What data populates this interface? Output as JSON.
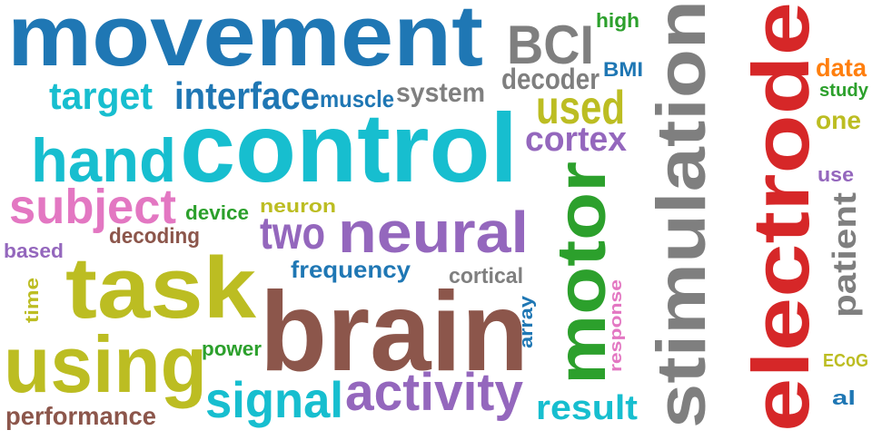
{
  "palette": {
    "blue": "#1f77b4",
    "teal": "#17becf",
    "olive": "#bcbd22",
    "purple": "#9467bd",
    "pink": "#e377c2",
    "brown": "#8c564b",
    "gray": "#7f7f7f",
    "green": "#2ca02c",
    "red": "#d62728",
    "orange": "#ff7f0e"
  },
  "words": [
    {
      "text": "movement",
      "color": "blue"
    },
    {
      "text": "control",
      "color": "teal"
    },
    {
      "text": "brain",
      "color": "brown"
    },
    {
      "text": "task",
      "color": "olive"
    },
    {
      "text": "electrode",
      "color": "red"
    },
    {
      "text": "stimulation",
      "color": "gray"
    },
    {
      "text": "using",
      "color": "olive"
    },
    {
      "text": "hand",
      "color": "teal"
    },
    {
      "text": "motor",
      "color": "green"
    },
    {
      "text": "neural",
      "color": "purple"
    },
    {
      "text": "activity",
      "color": "purple"
    },
    {
      "text": "signal",
      "color": "teal"
    },
    {
      "text": "subject",
      "color": "pink"
    },
    {
      "text": "interface",
      "color": "blue"
    },
    {
      "text": "BCI",
      "color": "gray"
    },
    {
      "text": "target",
      "color": "teal"
    },
    {
      "text": "two",
      "color": "purple"
    },
    {
      "text": "used",
      "color": "olive"
    },
    {
      "text": "cortex",
      "color": "purple"
    },
    {
      "text": "result",
      "color": "teal"
    },
    {
      "text": "patient",
      "color": "gray"
    },
    {
      "text": "decoder",
      "color": "gray"
    },
    {
      "text": "system",
      "color": "gray"
    },
    {
      "text": "muscle",
      "color": "blue"
    },
    {
      "text": "performance",
      "color": "brown"
    },
    {
      "text": "frequency",
      "color": "blue"
    },
    {
      "text": "decoding",
      "color": "brown"
    },
    {
      "text": "cortical",
      "color": "gray"
    },
    {
      "text": "data",
      "color": "orange"
    },
    {
      "text": "one",
      "color": "olive"
    },
    {
      "text": "high",
      "color": "green"
    },
    {
      "text": "BMI",
      "color": "blue"
    },
    {
      "text": "study",
      "color": "green"
    },
    {
      "text": "use",
      "color": "purple"
    },
    {
      "text": "device",
      "color": "green"
    },
    {
      "text": "neuron",
      "color": "olive"
    },
    {
      "text": "based",
      "color": "purple"
    },
    {
      "text": "power",
      "color": "green"
    },
    {
      "text": "array",
      "color": "blue"
    },
    {
      "text": "response",
      "color": "pink"
    },
    {
      "text": "time",
      "color": "olive"
    },
    {
      "text": "ECoG",
      "color": "olive"
    },
    {
      "text": "al",
      "color": "blue"
    }
  ]
}
